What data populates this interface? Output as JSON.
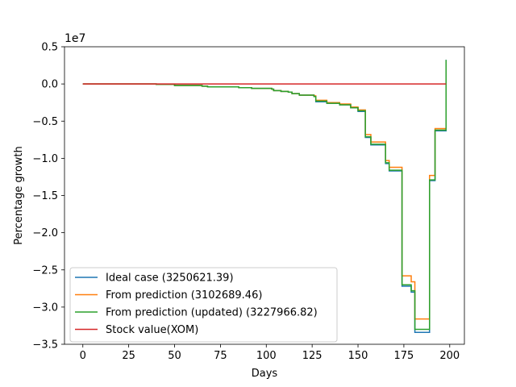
{
  "chart_data": {
    "type": "line",
    "title": "",
    "xlabel": "Days",
    "ylabel": "Percentage growth",
    "y_offset_label": "1e7",
    "xlim": [
      -10,
      208
    ],
    "ylim": [
      -35000000,
      5000000
    ],
    "xticks": [
      0,
      25,
      50,
      75,
      100,
      125,
      150,
      175,
      200
    ],
    "xtick_labels": [
      "0",
      "25",
      "50",
      "75",
      "100",
      "125",
      "150",
      "175",
      "200"
    ],
    "yticks": [
      -35000000,
      -30000000,
      -25000000,
      -20000000,
      -15000000,
      -10000000,
      -5000000,
      0,
      5000000
    ],
    "ytick_labels": [
      "−3.5",
      "−3.0",
      "−2.5",
      "−2.0",
      "−1.5",
      "−1.0",
      "−0.5",
      "0.0",
      "0.5"
    ],
    "grid": false,
    "legend_position": "lower-left",
    "series": [
      {
        "name": "Ideal case (3250621.39)",
        "color": "#1f77b4",
        "points": [
          [
            0,
            0
          ],
          [
            40,
            -50000
          ],
          [
            50,
            -200000
          ],
          [
            65,
            -300000
          ],
          [
            68,
            -400000
          ],
          [
            85,
            -500000
          ],
          [
            92,
            -600000
          ],
          [
            103,
            -700000
          ],
          [
            104,
            -900000
          ],
          [
            108,
            -1000000
          ],
          [
            112,
            -1100000
          ],
          [
            114,
            -1300000
          ],
          [
            118,
            -1500000
          ],
          [
            126,
            -1700000
          ],
          [
            127,
            -2400000
          ],
          [
            133,
            -2600000
          ],
          [
            140,
            -2800000
          ],
          [
            146,
            -3200000
          ],
          [
            150,
            -3700000
          ],
          [
            153,
            -3700000
          ],
          [
            154,
            -7200000
          ],
          [
            157,
            -8200000
          ],
          [
            164,
            -8200000
          ],
          [
            165,
            -10700000
          ],
          [
            167,
            -11700000
          ],
          [
            173,
            -11700000
          ],
          [
            174,
            -27200000
          ],
          [
            178,
            -27200000
          ],
          [
            179,
            -28000000
          ],
          [
            181,
            -33400000
          ],
          [
            188,
            -33400000
          ],
          [
            189,
            -13000000
          ],
          [
            191,
            -13000000
          ],
          [
            192,
            -6300000
          ],
          [
            197,
            -6300000
          ],
          [
            198,
            3250621
          ]
        ]
      },
      {
        "name": "From prediction (3102689.46)",
        "color": "#ff7f0e",
        "points": [
          [
            0,
            0
          ],
          [
            40,
            -50000
          ],
          [
            50,
            -200000
          ],
          [
            65,
            -300000
          ],
          [
            68,
            -400000
          ],
          [
            85,
            -500000
          ],
          [
            92,
            -600000
          ],
          [
            103,
            -700000
          ],
          [
            104,
            -900000
          ],
          [
            108,
            -1000000
          ],
          [
            112,
            -1100000
          ],
          [
            114,
            -1300000
          ],
          [
            118,
            -1500000
          ],
          [
            126,
            -1600000
          ],
          [
            127,
            -2200000
          ],
          [
            133,
            -2500000
          ],
          [
            140,
            -2700000
          ],
          [
            146,
            -3100000
          ],
          [
            150,
            -3500000
          ],
          [
            153,
            -3500000
          ],
          [
            154,
            -6800000
          ],
          [
            157,
            -7800000
          ],
          [
            164,
            -7800000
          ],
          [
            165,
            -10300000
          ],
          [
            167,
            -11200000
          ],
          [
            173,
            -11200000
          ],
          [
            174,
            -25800000
          ],
          [
            178,
            -25800000
          ],
          [
            179,
            -26600000
          ],
          [
            181,
            -31600000
          ],
          [
            188,
            -31600000
          ],
          [
            189,
            -12300000
          ],
          [
            191,
            -12300000
          ],
          [
            192,
            -6000000
          ],
          [
            197,
            -6000000
          ],
          [
            198,
            3102689
          ]
        ]
      },
      {
        "name": "From prediction (updated) (3227966.82)",
        "color": "#2ca02c",
        "points": [
          [
            0,
            0
          ],
          [
            40,
            -50000
          ],
          [
            50,
            -200000
          ],
          [
            65,
            -300000
          ],
          [
            68,
            -400000
          ],
          [
            85,
            -500000
          ],
          [
            92,
            -600000
          ],
          [
            103,
            -700000
          ],
          [
            104,
            -900000
          ],
          [
            108,
            -1000000
          ],
          [
            112,
            -1100000
          ],
          [
            114,
            -1300000
          ],
          [
            118,
            -1500000
          ],
          [
            126,
            -1700000
          ],
          [
            127,
            -2300000
          ],
          [
            133,
            -2600000
          ],
          [
            140,
            -2800000
          ],
          [
            146,
            -3200000
          ],
          [
            150,
            -3600000
          ],
          [
            153,
            -3600000
          ],
          [
            154,
            -7100000
          ],
          [
            157,
            -8100000
          ],
          [
            164,
            -8100000
          ],
          [
            165,
            -10600000
          ],
          [
            167,
            -11600000
          ],
          [
            173,
            -11600000
          ],
          [
            174,
            -27000000
          ],
          [
            178,
            -27000000
          ],
          [
            179,
            -27800000
          ],
          [
            181,
            -33000000
          ],
          [
            188,
            -33000000
          ],
          [
            189,
            -12900000
          ],
          [
            191,
            -12900000
          ],
          [
            192,
            -6200000
          ],
          [
            197,
            -6200000
          ],
          [
            198,
            3227967
          ]
        ]
      },
      {
        "name": "Stock value(XOM)",
        "color": "#d62728",
        "points": [
          [
            0,
            0
          ],
          [
            198,
            0
          ]
        ]
      }
    ]
  }
}
